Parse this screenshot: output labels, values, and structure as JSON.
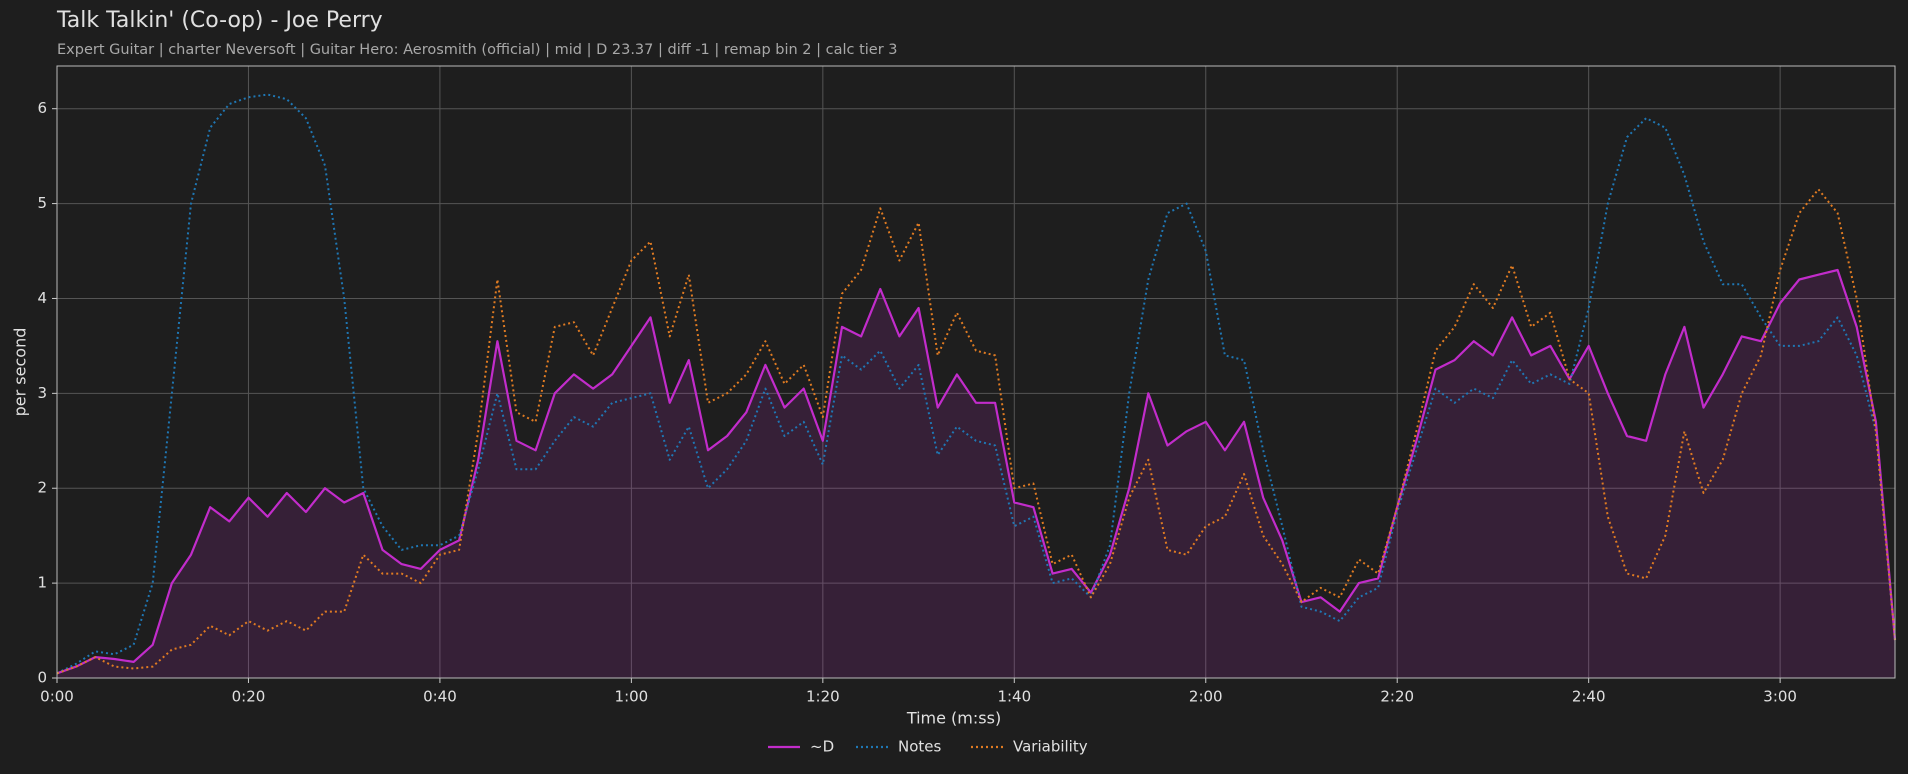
{
  "chart_data": {
    "type": "line",
    "title": "Talk Talkin' (Co-op) - Joe Perry",
    "subtitle": "Expert Guitar  |  charter Neversoft  |  Guitar Hero: Aerosmith (official)  |  mid  |  D 23.37  |  diff -1  |  remap bin 2  |  calc tier 3",
    "xlabel": "Time (m:ss)",
    "ylabel": "per second",
    "x": [
      0,
      2,
      4,
      6,
      8,
      10,
      12,
      14,
      16,
      18,
      20,
      22,
      24,
      26,
      28,
      30,
      32,
      34,
      36,
      38,
      40,
      42,
      44,
      46,
      48,
      50,
      52,
      54,
      56,
      58,
      60,
      62,
      64,
      66,
      68,
      70,
      72,
      74,
      76,
      78,
      80,
      82,
      84,
      86,
      88,
      90,
      92,
      94,
      96,
      98,
      100,
      102,
      104,
      106,
      108,
      110,
      112,
      114,
      116,
      118,
      120,
      122,
      124,
      126,
      128,
      130,
      132,
      134,
      136,
      138,
      140,
      142,
      144,
      146,
      148,
      150,
      152,
      154,
      156,
      158,
      160,
      162,
      164,
      166,
      168,
      170,
      172,
      174,
      176,
      178,
      180,
      182,
      184,
      186,
      188,
      190,
      192
    ],
    "series": [
      {
        "name": "~D",
        "color": "#c22ccb",
        "style": "solid",
        "area": true,
        "values": [
          0.05,
          0.12,
          0.22,
          0.2,
          0.17,
          0.35,
          1.0,
          1.3,
          1.8,
          1.65,
          1.9,
          1.7,
          1.95,
          1.75,
          2.0,
          1.85,
          1.95,
          1.35,
          1.2,
          1.15,
          1.35,
          1.45,
          2.3,
          3.55,
          2.5,
          2.4,
          3.0,
          3.2,
          3.05,
          3.2,
          3.5,
          3.8,
          2.9,
          3.35,
          2.4,
          2.55,
          2.8,
          3.3,
          2.85,
          3.05,
          2.5,
          3.7,
          3.6,
          4.1,
          3.6,
          3.9,
          2.85,
          3.2,
          2.9,
          2.9,
          1.85,
          1.8,
          1.1,
          1.15,
          0.9,
          1.3,
          2.0,
          3.0,
          2.45,
          2.6,
          2.7,
          2.4,
          2.7,
          1.9,
          1.45,
          0.8,
          0.85,
          0.7,
          1.0,
          1.05,
          1.8,
          2.5,
          3.25,
          3.35,
          3.55,
          3.4,
          3.8,
          3.4,
          3.5,
          3.15,
          3.5,
          3.0,
          2.55,
          2.5,
          3.2,
          3.7,
          2.85,
          3.2,
          3.6,
          3.55,
          3.95,
          4.2,
          4.25,
          4.3,
          3.7,
          2.7,
          0.4
        ]
      },
      {
        "name": "Notes",
        "color": "#1f77b4",
        "style": "dotted",
        "area": false,
        "values": [
          0.05,
          0.15,
          0.28,
          0.25,
          0.35,
          1.0,
          3.0,
          5.0,
          5.8,
          6.05,
          6.12,
          6.15,
          6.1,
          5.9,
          5.4,
          4.0,
          2.0,
          1.6,
          1.35,
          1.4,
          1.4,
          1.5,
          2.2,
          3.0,
          2.2,
          2.2,
          2.5,
          2.75,
          2.65,
          2.9,
          2.95,
          3.0,
          2.3,
          2.65,
          2.0,
          2.2,
          2.5,
          3.05,
          2.55,
          2.7,
          2.25,
          3.4,
          3.25,
          3.45,
          3.05,
          3.3,
          2.35,
          2.65,
          2.5,
          2.45,
          1.6,
          1.7,
          1.0,
          1.05,
          0.85,
          1.4,
          3.0,
          4.2,
          4.9,
          5.0,
          4.5,
          3.4,
          3.35,
          2.4,
          1.6,
          0.75,
          0.7,
          0.6,
          0.85,
          0.95,
          1.75,
          2.4,
          3.05,
          2.9,
          3.05,
          2.95,
          3.35,
          3.1,
          3.2,
          3.1,
          3.9,
          5.0,
          5.7,
          5.9,
          5.8,
          5.3,
          4.6,
          4.15,
          4.15,
          3.8,
          3.5,
          3.5,
          3.55,
          3.8,
          3.4,
          2.6,
          0.4
        ]
      },
      {
        "name": "Variability",
        "color": "#e07b22",
        "style": "dotted",
        "area": false,
        "values": [
          0.05,
          0.12,
          0.22,
          0.12,
          0.1,
          0.12,
          0.3,
          0.35,
          0.55,
          0.45,
          0.6,
          0.5,
          0.6,
          0.5,
          0.7,
          0.7,
          1.3,
          1.1,
          1.1,
          1.0,
          1.3,
          1.35,
          2.6,
          4.2,
          2.8,
          2.7,
          3.7,
          3.75,
          3.4,
          3.9,
          4.4,
          4.6,
          3.6,
          4.25,
          2.9,
          3.0,
          3.2,
          3.55,
          3.1,
          3.3,
          2.75,
          4.05,
          4.3,
          4.95,
          4.4,
          4.8,
          3.4,
          3.85,
          3.45,
          3.4,
          2.0,
          2.05,
          1.2,
          1.3,
          0.85,
          1.2,
          1.9,
          2.3,
          1.35,
          1.3,
          1.6,
          1.7,
          2.15,
          1.5,
          1.2,
          0.8,
          0.95,
          0.85,
          1.25,
          1.1,
          1.8,
          2.6,
          3.45,
          3.7,
          4.15,
          3.9,
          4.35,
          3.7,
          3.85,
          3.15,
          3.0,
          1.7,
          1.1,
          1.05,
          1.5,
          2.6,
          1.95,
          2.3,
          3.0,
          3.4,
          4.3,
          4.9,
          5.15,
          4.9,
          4.0,
          2.6,
          0.4
        ]
      }
    ],
    "xlim": [
      0,
      192
    ],
    "xticks": [
      {
        "value": 0,
        "label": "0:00"
      },
      {
        "value": 20,
        "label": "0:20"
      },
      {
        "value": 40,
        "label": "0:40"
      },
      {
        "value": 60,
        "label": "1:00"
      },
      {
        "value": 80,
        "label": "1:20"
      },
      {
        "value": 100,
        "label": "1:40"
      },
      {
        "value": 120,
        "label": "2:00"
      },
      {
        "value": 140,
        "label": "2:20"
      },
      {
        "value": 160,
        "label": "2:40"
      },
      {
        "value": 180,
        "label": "3:00"
      }
    ],
    "ylim": [
      0,
      6.45
    ],
    "yticks": [
      0,
      1,
      2,
      3,
      4,
      5,
      6
    ],
    "grid": true,
    "legend": "bottom"
  }
}
